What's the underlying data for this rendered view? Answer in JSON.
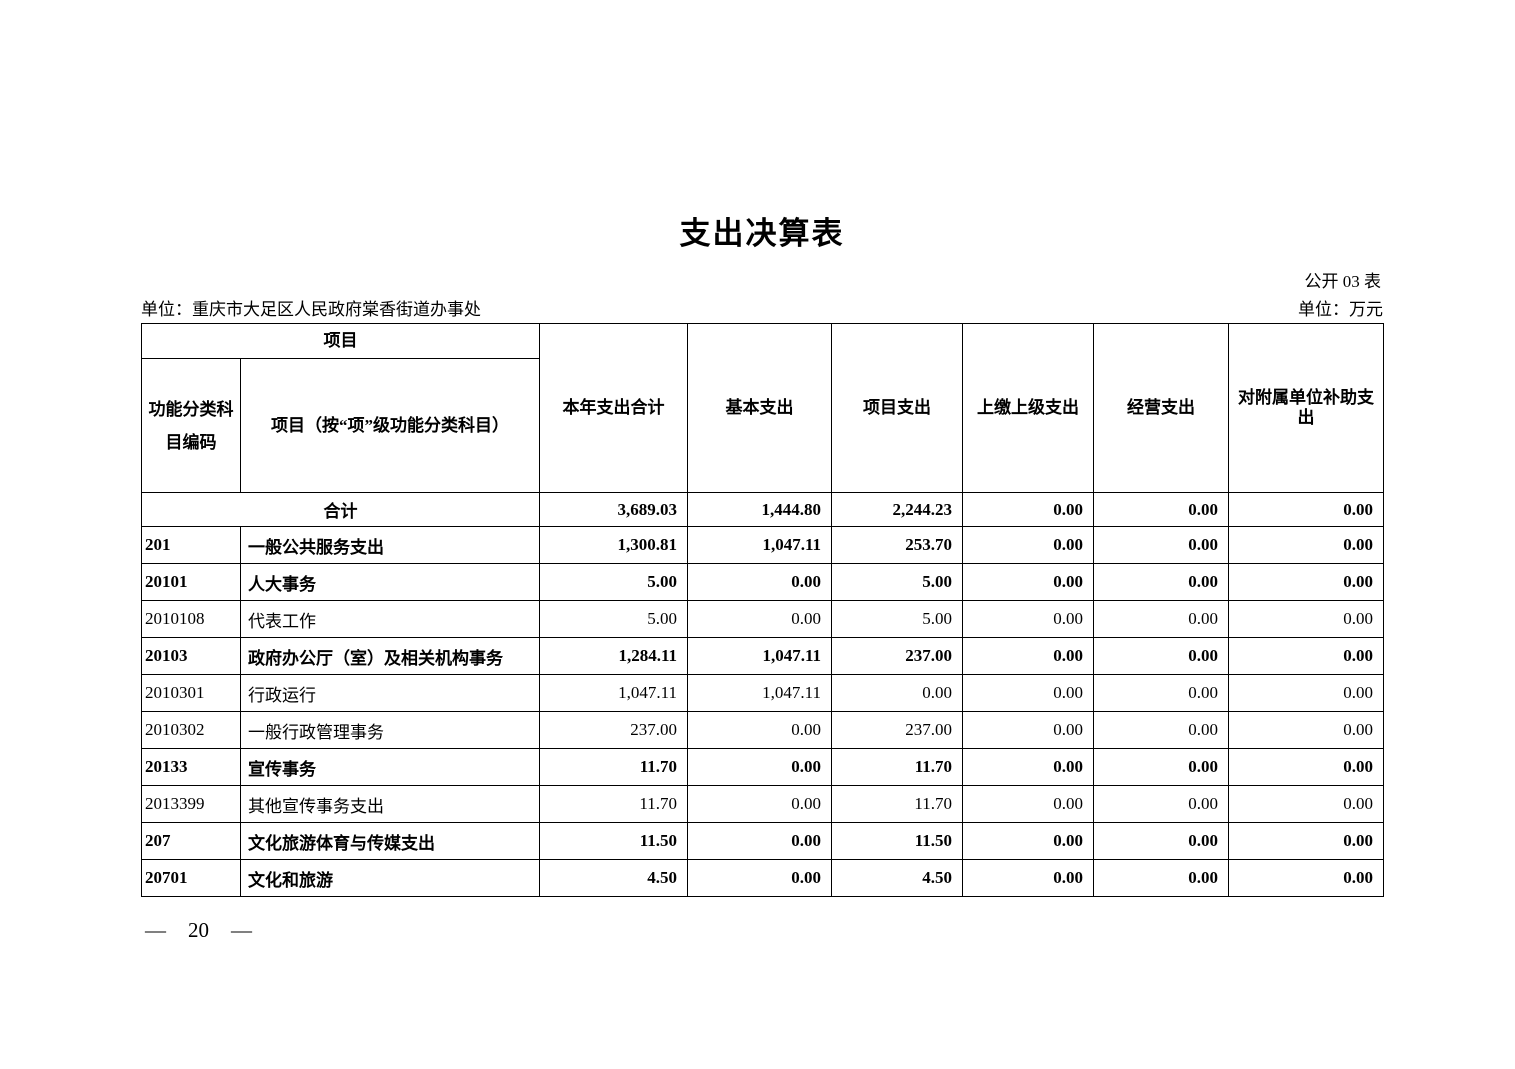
{
  "page": {
    "title": "支出决算表",
    "table_label": "公开 03 表",
    "unit_left": "单位：重庆市大足区人民政府棠香街道办事处",
    "unit_right": "单位：万元",
    "footer_dash": "—",
    "page_number": "20"
  },
  "table": {
    "header": {
      "group_item": "项目",
      "col_code": "功能分类科目编码",
      "col_item": "项目（按“项”级功能分类科目）",
      "col_total": "本年支出合计",
      "col_basic": "基本支出",
      "col_project": "项目支出",
      "col_upper": "上缴上级支出",
      "col_operating": "经营支出",
      "col_subsidy": "对附属单位补助支出"
    },
    "rows": [
      {
        "code": "",
        "item": "合计",
        "is_total": true,
        "bold": true,
        "values": [
          "3,689.03",
          "1,444.80",
          "2,244.23",
          "0.00",
          "0.00",
          "0.00"
        ]
      },
      {
        "code": "201",
        "item": "一般公共服务支出",
        "is_total": false,
        "bold": true,
        "values": [
          "1,300.81",
          "1,047.11",
          "253.70",
          "0.00",
          "0.00",
          "0.00"
        ]
      },
      {
        "code": "20101",
        "item": "人大事务",
        "is_total": false,
        "bold": true,
        "values": [
          "5.00",
          "0.00",
          "5.00",
          "0.00",
          "0.00",
          "0.00"
        ]
      },
      {
        "code": "2010108",
        "item": "代表工作",
        "is_total": false,
        "bold": false,
        "values": [
          "5.00",
          "0.00",
          "5.00",
          "0.00",
          "0.00",
          "0.00"
        ]
      },
      {
        "code": "20103",
        "item": "政府办公厅（室）及相关机构事务",
        "is_total": false,
        "bold": true,
        "values": [
          "1,284.11",
          "1,047.11",
          "237.00",
          "0.00",
          "0.00",
          "0.00"
        ]
      },
      {
        "code": "2010301",
        "item": "行政运行",
        "is_total": false,
        "bold": false,
        "values": [
          "1,047.11",
          "1,047.11",
          "0.00",
          "0.00",
          "0.00",
          "0.00"
        ]
      },
      {
        "code": "2010302",
        "item": "一般行政管理事务",
        "is_total": false,
        "bold": false,
        "values": [
          "237.00",
          "0.00",
          "237.00",
          "0.00",
          "0.00",
          "0.00"
        ]
      },
      {
        "code": "20133",
        "item": "宣传事务",
        "is_total": false,
        "bold": true,
        "values": [
          "11.70",
          "0.00",
          "11.70",
          "0.00",
          "0.00",
          "0.00"
        ]
      },
      {
        "code": "2013399",
        "item": "其他宣传事务支出",
        "is_total": false,
        "bold": false,
        "values": [
          "11.70",
          "0.00",
          "11.70",
          "0.00",
          "0.00",
          "0.00"
        ]
      },
      {
        "code": "207",
        "item": "文化旅游体育与传媒支出",
        "is_total": false,
        "bold": true,
        "values": [
          "11.50",
          "0.00",
          "11.50",
          "0.00",
          "0.00",
          "0.00"
        ]
      },
      {
        "code": "20701",
        "item": "文化和旅游",
        "is_total": false,
        "bold": true,
        "values": [
          "4.50",
          "0.00",
          "4.50",
          "0.00",
          "0.00",
          "0.00"
        ]
      }
    ]
  }
}
